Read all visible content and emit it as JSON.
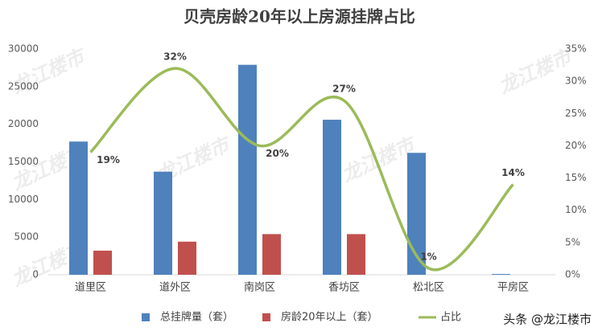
{
  "chart_data": {
    "type": "bar-line",
    "title": "贝壳房龄20年以上房源挂牌占比",
    "categories": [
      "道里区",
      "道外区",
      "南岗区",
      "香坊区",
      "松北区",
      "平房区"
    ],
    "series": [
      {
        "name": "总挂牌量（套）",
        "color": "#4f81bd",
        "type": "bar",
        "values": [
          17700,
          13700,
          27900,
          20600,
          16200,
          100
        ]
      },
      {
        "name": "房龄20年以上（套）",
        "color": "#c0504d",
        "type": "bar",
        "values": [
          3200,
          4400,
          5400,
          5400,
          0,
          0
        ]
      },
      {
        "name": "占比",
        "color": "#9bbb59",
        "type": "line",
        "axis": "y2",
        "values": [
          19,
          32,
          20,
          27,
          1,
          14
        ],
        "value_labels": [
          "19%",
          "32%",
          "20%",
          "27%",
          "1%",
          "14%"
        ]
      }
    ],
    "ylim": [
      0,
      30000
    ],
    "yticks": [
      0,
      5000,
      10000,
      15000,
      20000,
      25000,
      30000
    ],
    "y2lim": [
      0,
      35
    ],
    "y2ticks": [
      {
        "value": 0,
        "label": "0%"
      },
      {
        "value": 5,
        "label": "5%"
      },
      {
        "value": 10,
        "label": "10%"
      },
      {
        "value": 15,
        "label": "15%"
      },
      {
        "value": 20,
        "label": "20%"
      },
      {
        "value": 25,
        "label": "25%"
      },
      {
        "value": 30,
        "label": "30%"
      },
      {
        "value": 35,
        "label": "35%"
      }
    ],
    "grid": false,
    "legend": "bottom",
    "watermark": "龙江楼市",
    "footer": "头条 @龙江楼市"
  }
}
